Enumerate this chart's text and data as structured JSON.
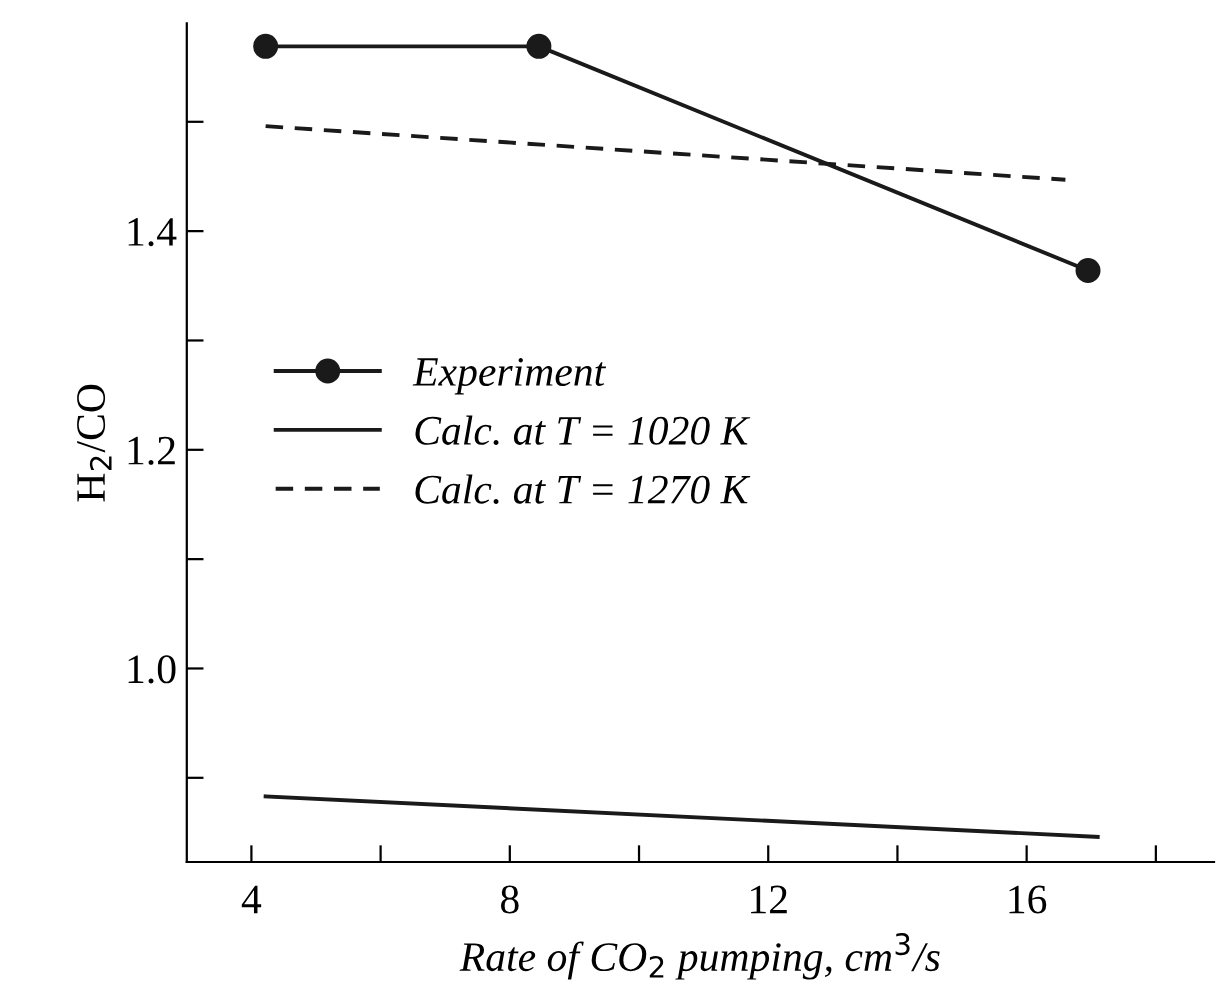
{
  "chart_data": {
    "type": "line",
    "xlabel": "Rate of CO$_{2}$ pumping, cm$^{3}$/s",
    "ylabel": "H$_{2}$/CO",
    "xlim": [
      3,
      18.9
    ],
    "xticks": [
      4,
      {
        "value": 6,
        "label": null
      },
      8,
      {
        "value": 10,
        "label": null
      },
      12,
      {
        "value": 14,
        "label": null
      },
      16,
      {
        "value": 18,
        "label": null
      }
    ],
    "ylim": [
      0.823,
      1.59
    ],
    "yticks": [
      {
        "value": 0.9,
        "label": null
      },
      {
        "value": 1.0,
        "label": "1.0"
      },
      {
        "value": 1.1,
        "label": null
      },
      1.2,
      {
        "value": 1.3,
        "label": null
      },
      1.4,
      {
        "value": 1.5,
        "label": null
      }
    ],
    "legend": "left",
    "grid": false,
    "series": [
      {
        "name": "Experiment",
        "color": "#1a1a1a",
        "x": [
          4.22,
          8.45,
          16.95
        ],
        "values": [
          1.569,
          1.569,
          1.364
        ],
        "marker": "circle",
        "line_style": "solid"
      },
      {
        "name": "Calc. at T = 1020 K",
        "color": "#1a1a1a",
        "x": [
          4.22,
          17.1
        ],
        "values": [
          0.883,
          0.846
        ],
        "marker": "none",
        "line_style": "solid"
      },
      {
        "name": "Calc. at T = 1270 K",
        "color": "#1a1a1a",
        "x": [
          4.22,
          16.6
        ],
        "values": [
          1.496,
          1.447
        ],
        "marker": "none",
        "line_style": "dashed"
      }
    ]
  }
}
